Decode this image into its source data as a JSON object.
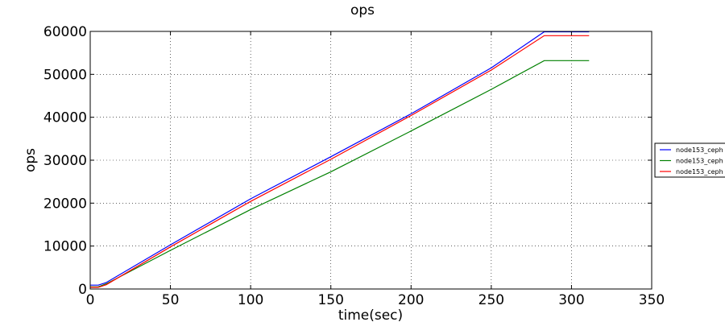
{
  "chart_data": {
    "type": "line",
    "title": "ops",
    "xlabel": "time(sec)",
    "ylabel": "ops",
    "xlim": [
      0,
      350
    ],
    "ylim": [
      0,
      60000
    ],
    "xticks": [
      0,
      50,
      100,
      150,
      200,
      250,
      300,
      350
    ],
    "yticks": [
      0,
      10000,
      20000,
      30000,
      40000,
      50000,
      60000
    ],
    "grid": true,
    "legend_position": "right, outside plot",
    "series": [
      {
        "name": "node153_ceph",
        "color": "#0000ff",
        "x": [
          0,
          5,
          10,
          50,
          100,
          150,
          200,
          250,
          283,
          311
        ],
        "y": [
          900,
          900,
          1500,
          10300,
          21000,
          30800,
          40800,
          51500,
          59900,
          59900
        ]
      },
      {
        "name": "node153_ceph",
        "color": "#008000",
        "x": [
          0,
          5,
          10,
          50,
          100,
          150,
          200,
          250,
          283,
          311
        ],
        "y": [
          500,
          500,
          1200,
          9000,
          18500,
          27300,
          36800,
          46500,
          53200,
          53200
        ]
      },
      {
        "name": "node153_ceph",
        "color": "#ff0000",
        "x": [
          0,
          5,
          10,
          50,
          100,
          150,
          200,
          250,
          283,
          311
        ],
        "y": [
          400,
          400,
          1000,
          9800,
          20400,
          30200,
          40400,
          51000,
          59000,
          59000
        ]
      }
    ]
  }
}
